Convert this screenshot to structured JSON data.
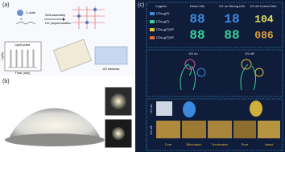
{
  "panel_a": {
    "label": "(a)",
    "molecule": "C-dots",
    "steps": [
      "Self-assembly",
      "UV polymerization"
    ],
    "inset": {
      "note": "Light pulse",
      "x_label": "Time (min)",
      "y_label": "I (pA)"
    },
    "device": "UV detector"
  },
  "panel_b": {
    "label": "(b)"
  },
  "panel_c": {
    "label": "(c)",
    "headers": [
      "Legend",
      "Demo Info",
      "UV on Wrong Info",
      "UV off Correct Info"
    ],
    "legend": [
      "CDs-g(F)",
      "CDs-g(T)",
      "CDs-g(T)DP",
      "CDs-g(T)DP"
    ],
    "demo_digits": [
      "88",
      "88"
    ],
    "wrong_digits": [
      "18",
      "88"
    ],
    "correct_digits": [
      "104",
      "086"
    ],
    "middle": [
      "UV on",
      "UV off"
    ],
    "bottom_states": [
      "UV on",
      "UV off"
    ],
    "features": [
      "Core",
      "Bifurcation",
      "Termination",
      "Pore",
      "Island"
    ]
  }
}
